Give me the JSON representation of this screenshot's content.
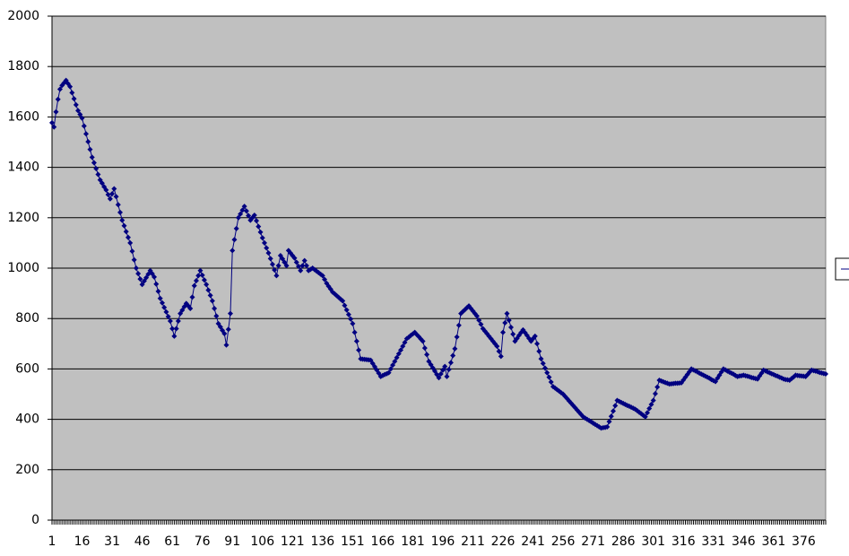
{
  "chart_data": {
    "type": "line",
    "color": "#000080",
    "grid": true,
    "ylim": [
      0,
      2000
    ],
    "yticks": [
      0,
      200,
      400,
      600,
      800,
      1000,
      1200,
      1400,
      1600,
      1800,
      2000
    ],
    "categories": [
      "1",
      null,
      null,
      null,
      null,
      null,
      null,
      null,
      null,
      null,
      null,
      null,
      null,
      null,
      null,
      "16",
      null,
      null,
      null,
      null,
      null,
      null,
      null,
      null,
      null,
      null,
      null,
      null,
      null,
      null,
      "31",
      null,
      null,
      null,
      null,
      null,
      null,
      null,
      null,
      null,
      null,
      null,
      null,
      null,
      null,
      "46",
      null,
      null,
      null,
      null,
      null,
      null,
      null,
      null,
      null,
      null,
      null,
      null,
      null,
      null,
      "61",
      null,
      null,
      null,
      null,
      null,
      null,
      null,
      null,
      null,
      null,
      null,
      null,
      null,
      null,
      "76",
      null,
      null,
      null,
      null,
      null,
      null,
      null,
      null,
      null,
      null,
      null,
      null,
      null,
      null,
      "91",
      null,
      null,
      null,
      null,
      null,
      null,
      null,
      null,
      null,
      null,
      null,
      null,
      null,
      null,
      "106",
      null,
      null,
      null,
      null,
      null,
      null,
      null,
      null,
      null,
      null,
      null,
      null,
      null,
      null,
      "121",
      null,
      null,
      null,
      null,
      null,
      null,
      null,
      null,
      null,
      null,
      null,
      null,
      null,
      null,
      "136",
      null,
      null,
      null,
      null,
      null,
      null,
      null,
      null,
      null,
      null,
      null,
      null,
      null,
      null,
      "151",
      null,
      null,
      null,
      null,
      null,
      null,
      null,
      null,
      null,
      null,
      null,
      null,
      null,
      null,
      "166",
      null,
      null,
      null,
      null,
      null,
      null,
      null,
      null,
      null,
      null,
      null,
      null,
      null,
      null,
      "181",
      null,
      null,
      null,
      null,
      null,
      null,
      null,
      null,
      null,
      null,
      null,
      null,
      null,
      null,
      "196",
      null,
      null,
      null,
      null,
      null,
      null,
      null,
      null,
      null,
      null,
      null,
      null,
      null,
      null,
      "211",
      null,
      null,
      null,
      null,
      null,
      null,
      null,
      null,
      null,
      null,
      null,
      null,
      null,
      null,
      "226",
      null,
      null,
      null,
      null,
      null,
      null,
      null,
      null,
      null,
      null,
      null,
      null,
      null,
      null,
      "241",
      null,
      null,
      null,
      null,
      null,
      null,
      null,
      null,
      null,
      null,
      null,
      null,
      null,
      null,
      "256",
      null,
      null,
      null,
      null,
      null,
      null,
      null,
      null,
      null,
      null,
      null,
      null,
      null,
      null,
      "271",
      null,
      null,
      null,
      null,
      null,
      null,
      null,
      null,
      null,
      null,
      null,
      null,
      null,
      null,
      "286",
      null,
      null,
      null,
      null,
      null,
      null,
      null,
      null,
      null,
      null,
      null,
      null,
      null,
      null,
      "301",
      null,
      null,
      null,
      null,
      null,
      null,
      null,
      null,
      null,
      null,
      null,
      null,
      null,
      null,
      "316",
      null,
      null,
      null,
      null,
      null,
      null,
      null,
      null,
      null,
      null,
      null,
      null,
      null,
      null,
      "331",
      null,
      null,
      null,
      null,
      null,
      null,
      null,
      null,
      null,
      null,
      null,
      null,
      null,
      null,
      "346",
      null,
      null,
      null,
      null,
      null,
      null,
      null,
      null,
      null,
      null,
      null,
      null,
      null,
      null,
      "361",
      null,
      null,
      null,
      null,
      null,
      null,
      null,
      null,
      null,
      null,
      null,
      null,
      null,
      null,
      "376",
      null,
      null,
      null,
      null,
      null,
      null,
      null,
      null,
      null,
      null,
      null
    ],
    "values": [
      1577,
      1560,
      1620,
      1670,
      1710,
      1725,
      1735,
      1745,
      1732,
      1720,
      1696,
      1672,
      1648,
      1625,
      1610,
      1595,
      1564,
      1533,
      1502,
      1471,
      1440,
      1418,
      1395,
      1372,
      1350,
      1337,
      1323,
      1310,
      1292,
      1275,
      1295,
      1315,
      1284,
      1252,
      1221,
      1190,
      1168,
      1145,
      1122,
      1100,
      1067,
      1033,
      1000,
      978,
      957,
      935,
      949,
      962,
      976,
      990,
      978,
      965,
      937,
      908,
      880,
      862,
      844,
      826,
      808,
      790,
      760,
      730,
      760,
      790,
      820,
      833,
      847,
      860,
      850,
      840,
      885,
      930,
      950,
      970,
      990,
      972,
      953,
      935,
      913,
      892,
      870,
      840,
      810,
      780,
      767,
      753,
      740,
      695,
      757,
      820,
      1070,
      1113,
      1157,
      1200,
      1215,
      1230,
      1245,
      1227,
      1208,
      1190,
      1200,
      1210,
      1188,
      1165,
      1143,
      1120,
      1100,
      1080,
      1060,
      1038,
      1015,
      993,
      970,
      1010,
      1050,
      1037,
      1023,
      1010,
      1070,
      1060,
      1050,
      1040,
      1023,
      1007,
      990,
      1010,
      1030,
      1010,
      990,
      995,
      1000,
      994,
      988,
      982,
      976,
      970,
      955,
      940,
      928,
      917,
      905,
      898,
      891,
      884,
      877,
      870,
      852,
      834,
      816,
      798,
      780,
      745,
      710,
      675,
      640,
      639,
      638,
      637,
      636,
      635,
      622,
      609,
      596,
      583,
      570,
      574,
      578,
      581,
      585,
      600,
      615,
      630,
      645,
      660,
      675,
      690,
      705,
      720,
      726,
      733,
      739,
      745,
      736,
      728,
      719,
      710,
      683,
      657,
      630,
      617,
      604,
      591,
      578,
      565,
      580,
      595,
      610,
      570,
      598,
      625,
      653,
      680,
      727,
      773,
      820,
      828,
      835,
      843,
      850,
      840,
      830,
      820,
      810,
      793,
      777,
      760,
      750,
      740,
      730,
      720,
      710,
      700,
      690,
      670,
      650,
      745,
      783,
      820,
      793,
      765,
      738,
      710,
      721,
      733,
      744,
      755,
      744,
      733,
      721,
      710,
      720,
      730,
      700,
      670,
      640,
      622,
      603,
      585,
      567,
      548,
      530,
      524,
      518,
      512,
      506,
      500,
      491,
      482,
      473,
      464,
      455,
      446,
      437,
      428,
      419,
      410,
      405,
      400,
      395,
      390,
      385,
      380,
      375,
      370,
      365,
      367,
      368,
      370,
      391,
      412,
      433,
      454,
      475,
      471,
      467,
      463,
      459,
      455,
      452,
      448,
      444,
      440,
      434,
      428,
      422,
      416,
      410,
      426,
      443,
      459,
      475,
      502,
      528,
      555,
      552,
      549,
      546,
      543,
      540,
      541,
      542,
      543,
      543,
      544,
      545,
      556,
      567,
      578,
      589,
      600,
      596,
      592,
      588,
      583,
      579,
      575,
      571,
      567,
      563,
      558,
      554,
      550,
      563,
      575,
      588,
      600,
      596,
      591,
      587,
      583,
      579,
      574,
      570,
      572,
      573,
      575,
      573,
      571,
      569,
      566,
      564,
      562,
      560,
      572,
      583,
      595,
      592,
      588,
      585,
      581,
      578,
      574,
      571,
      567,
      564,
      560,
      558,
      557,
      555,
      562,
      568,
      575,
      574,
      573,
      572,
      571,
      570,
      578,
      587,
      595,
      593,
      591,
      589,
      586,
      584,
      582,
      580
    ]
  }
}
